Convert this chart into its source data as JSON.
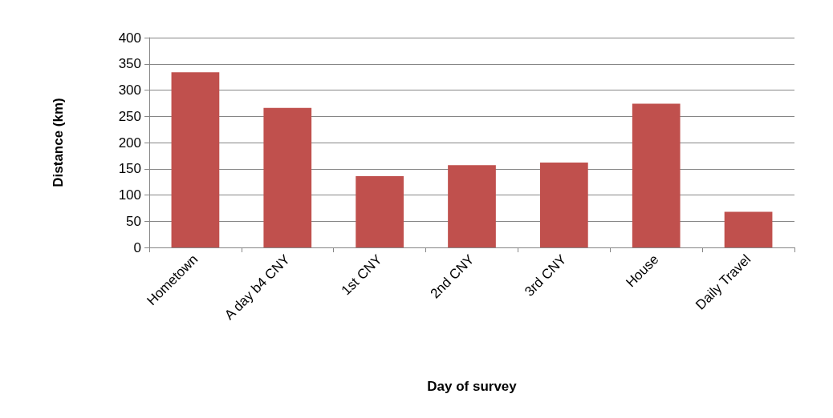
{
  "chart_data": {
    "type": "bar",
    "xlabel": "Day of survey",
    "ylabel": "Distance (km)",
    "categories": [
      "Hometown",
      "A day b4 CNY",
      "1st CNY",
      "2nd CNY",
      "3rd CNY",
      "House",
      "Daily Travel"
    ],
    "values": [
      334,
      266,
      136,
      157,
      162,
      274,
      68
    ],
    "color": "#c0504d",
    "ylim": [
      0,
      400
    ],
    "yticks": [
      0,
      50,
      100,
      150,
      200,
      250,
      300,
      350,
      400
    ],
    "grid": "y"
  }
}
